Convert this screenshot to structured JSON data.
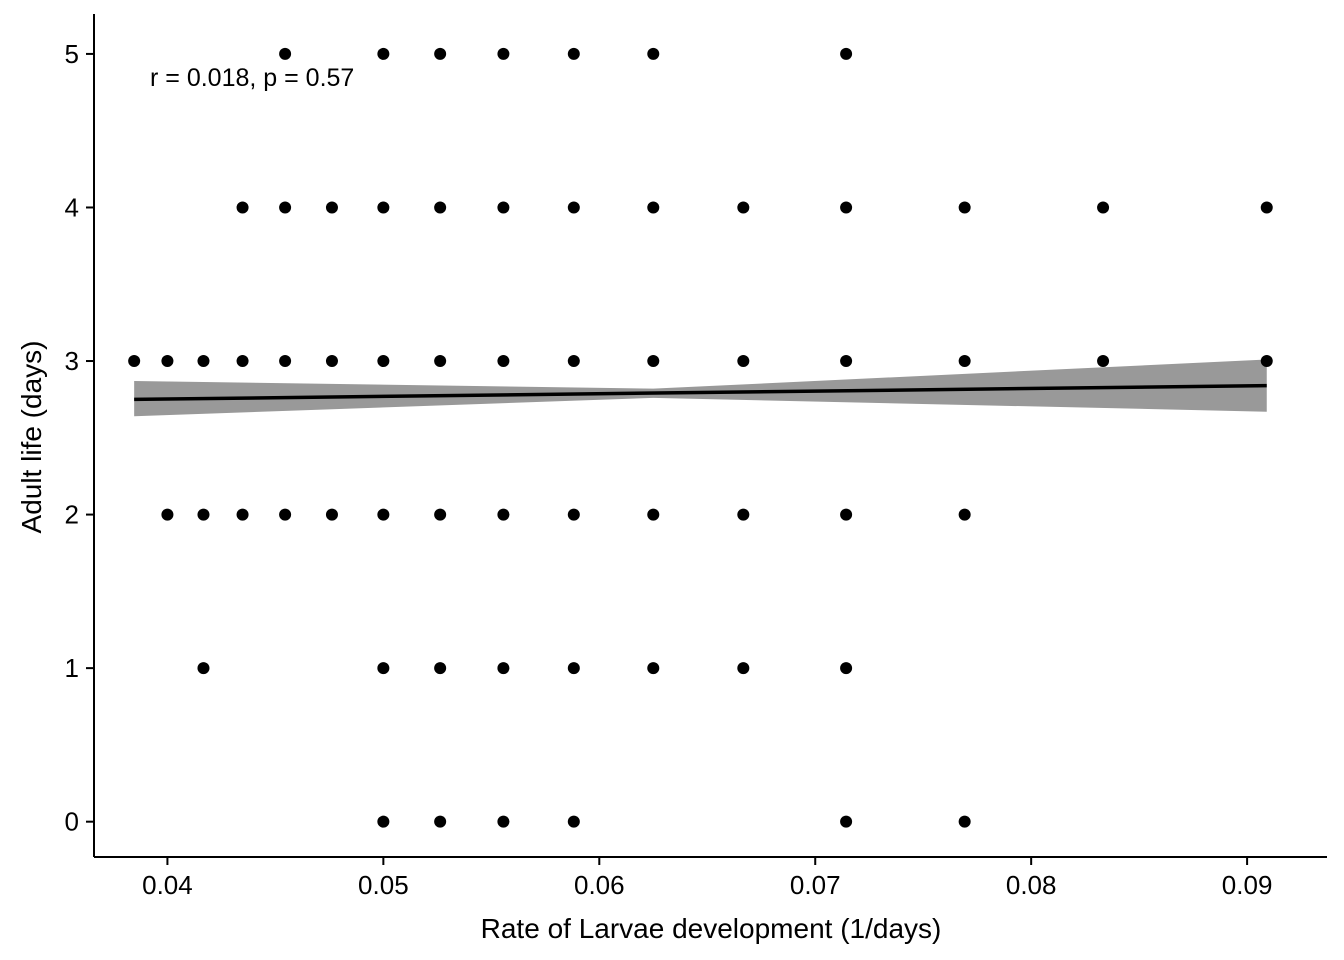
{
  "chart_data": {
    "type": "scatter",
    "xlabel": "Rate of Larvae development (1/days)",
    "ylabel": "Adult life (days)",
    "annotation": "r = 0.018, p = 0.57",
    "xlim": [
      0.0366,
      0.0937
    ],
    "ylim": [
      -0.23,
      5.26
    ],
    "x_ticks": [
      0.04,
      0.05,
      0.06,
      0.07,
      0.08,
      0.09
    ],
    "x_tick_labels": [
      "0.04",
      "0.05",
      "0.06",
      "0.07",
      "0.08",
      "0.09"
    ],
    "y_ticks": [
      0,
      1,
      2,
      3,
      4,
      5
    ],
    "y_tick_labels": [
      "0",
      "1",
      "2",
      "3",
      "4",
      "5"
    ],
    "grid": false,
    "point_color": "#000000",
    "line_color": "#000000",
    "band_color": "#999999",
    "points": [
      [
        0.04545,
        5
      ],
      [
        0.05,
        5
      ],
      [
        0.05263,
        5
      ],
      [
        0.05556,
        5
      ],
      [
        0.05882,
        5
      ],
      [
        0.0625,
        5
      ],
      [
        0.07143,
        5
      ],
      [
        0.04348,
        4
      ],
      [
        0.04545,
        4
      ],
      [
        0.04762,
        4
      ],
      [
        0.05,
        4
      ],
      [
        0.05263,
        4
      ],
      [
        0.05556,
        4
      ],
      [
        0.05882,
        4
      ],
      [
        0.0625,
        4
      ],
      [
        0.06667,
        4
      ],
      [
        0.07143,
        4
      ],
      [
        0.07692,
        4
      ],
      [
        0.08333,
        4
      ],
      [
        0.09091,
        4
      ],
      [
        0.03846,
        3
      ],
      [
        0.04,
        3
      ],
      [
        0.04167,
        3
      ],
      [
        0.04348,
        3
      ],
      [
        0.04545,
        3
      ],
      [
        0.04762,
        3
      ],
      [
        0.05,
        3
      ],
      [
        0.05263,
        3
      ],
      [
        0.05556,
        3
      ],
      [
        0.05882,
        3
      ],
      [
        0.0625,
        3
      ],
      [
        0.06667,
        3
      ],
      [
        0.07143,
        3
      ],
      [
        0.07692,
        3
      ],
      [
        0.08333,
        3
      ],
      [
        0.09091,
        3
      ],
      [
        0.04,
        2
      ],
      [
        0.04167,
        2
      ],
      [
        0.04348,
        2
      ],
      [
        0.04545,
        2
      ],
      [
        0.04762,
        2
      ],
      [
        0.05,
        2
      ],
      [
        0.05263,
        2
      ],
      [
        0.05556,
        2
      ],
      [
        0.05882,
        2
      ],
      [
        0.0625,
        2
      ],
      [
        0.06667,
        2
      ],
      [
        0.07143,
        2
      ],
      [
        0.07692,
        2
      ],
      [
        0.04167,
        1
      ],
      [
        0.05,
        1
      ],
      [
        0.05263,
        1
      ],
      [
        0.05556,
        1
      ],
      [
        0.05882,
        1
      ],
      [
        0.0625,
        1
      ],
      [
        0.06667,
        1
      ],
      [
        0.07143,
        1
      ],
      [
        0.05,
        0
      ],
      [
        0.05263,
        0
      ],
      [
        0.05556,
        0
      ],
      [
        0.05882,
        0
      ],
      [
        0.07143,
        0
      ],
      [
        0.07692,
        0
      ]
    ],
    "fit_line": {
      "x": [
        0.03846,
        0.09091
      ],
      "y": [
        2.75,
        2.84
      ]
    },
    "confidence_band": {
      "x": [
        0.03846,
        0.0625,
        0.09091
      ],
      "lower": [
        2.64,
        2.76,
        2.67
      ],
      "upper": [
        2.87,
        2.82,
        3.01
      ]
    }
  }
}
